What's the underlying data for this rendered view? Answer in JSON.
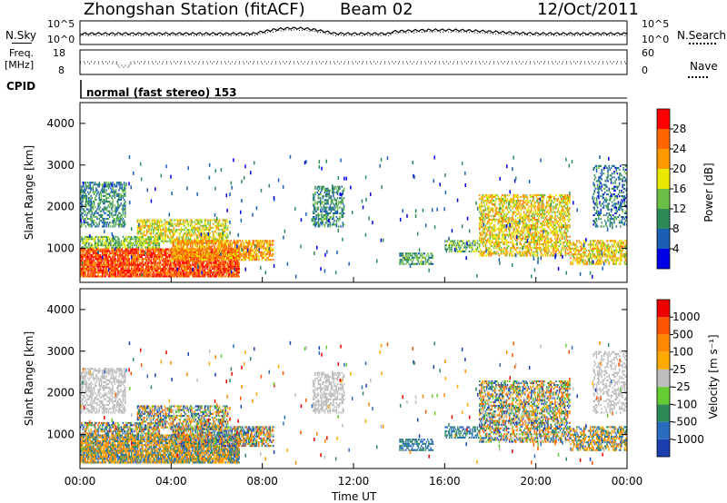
{
  "header": {
    "station": "Zhongshan Station (fitACF)",
    "beam": "Beam 02",
    "date": "12/Oct/2011"
  },
  "noise_panel": {
    "left_label": "N.Sky",
    "right_label": "N.Search",
    "left_ticks": [
      "10^5",
      "10^0"
    ],
    "right_ticks": [
      "10^5",
      "10^0"
    ]
  },
  "freq_panel": {
    "left_label_1": "Freq.",
    "left_label_2": "[MHz]",
    "right_label": "Nave",
    "left_ticks": [
      "18",
      "8"
    ],
    "right_ticks": [
      "60",
      "0"
    ]
  },
  "cpid": {
    "label": "CPID",
    "value": "normal (fast stereo) 153"
  },
  "chart_data": [
    {
      "type": "heatmap",
      "name": "power",
      "ylabel": "Slant Range [km]",
      "ylim": [
        180,
        4500
      ],
      "yticks": [
        "1000",
        "2000",
        "3000",
        "4000"
      ],
      "x_ticks": [
        "00:00",
        "04:00",
        "08:00",
        "12:00",
        "16:00",
        "20:00",
        "00:00"
      ],
      "colorbar": {
        "label": "Power [dB]",
        "ticks": [
          "4",
          "8",
          "12",
          "16",
          "20",
          "24",
          "28"
        ],
        "colors": [
          "#0000e6",
          "#1a5fb4",
          "#2e8b57",
          "#6abe45",
          "#e8e800",
          "#ff9900",
          "#ff6600",
          "#ff0000"
        ]
      }
    },
    {
      "type": "heatmap",
      "name": "velocity",
      "ylabel": "Slant Range [km]",
      "ylim": [
        180,
        4500
      ],
      "yticks": [
        "1000",
        "2000",
        "3000",
        "4000"
      ],
      "x_ticks": [
        "00:00",
        "04:00",
        "08:00",
        "12:00",
        "16:00",
        "20:00",
        "00:00"
      ],
      "xlabel": "Time UT",
      "colorbar": {
        "label": "Velocity [m s⁻¹]",
        "ticks": [
          "1000",
          "500",
          "100",
          "25",
          "-25",
          "-100",
          "-500",
          "-1000"
        ],
        "colors": [
          "#1c3fb0",
          "#2a6cc0",
          "#2e8b57",
          "#66cc33",
          "#bdbdbd",
          "#ffaa00",
          "#ff8800",
          "#ff5500",
          "#ee0000"
        ]
      }
    }
  ]
}
